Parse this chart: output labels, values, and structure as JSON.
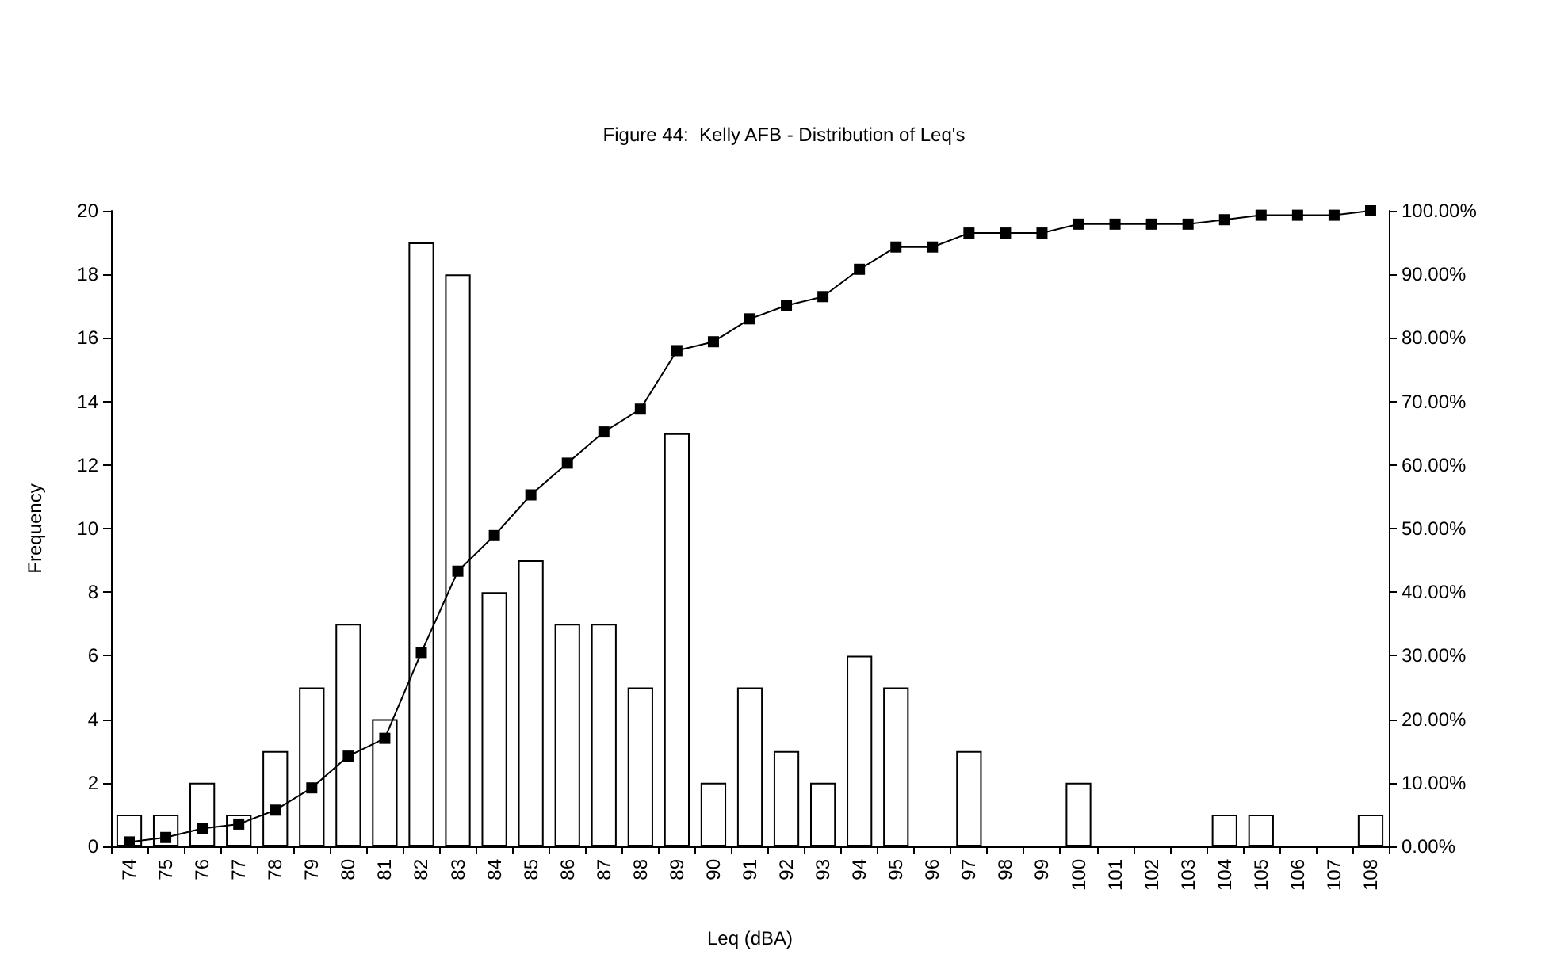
{
  "chart_data": {
    "type": "bar",
    "title": "Figure 44:  Kelly AFB - Distribution of Leq's",
    "xlabel": "Leq (dBA)",
    "ylabel": "Frequency",
    "categories": [
      "74",
      "75",
      "76",
      "77",
      "78",
      "79",
      "80",
      "81",
      "82",
      "83",
      "84",
      "85",
      "86",
      "87",
      "88",
      "89",
      "90",
      "91",
      "92",
      "93",
      "94",
      "95",
      "96",
      "97",
      "98",
      "99",
      "100",
      "101",
      "102",
      "103",
      "104",
      "105",
      "106",
      "107",
      "108"
    ],
    "series": [
      {
        "color": "#ffffff",
        "values": [
          1,
          1,
          2,
          1,
          3,
          5,
          7,
          4,
          19,
          18,
          8,
          9,
          7,
          7,
          5,
          13,
          2,
          5,
          3,
          2,
          6,
          5,
          0,
          3,
          0,
          0,
          2,
          0,
          0,
          0,
          1,
          1,
          0,
          0,
          1
        ]
      },
      {
        "type": "line",
        "axis": "y2",
        "color": "#000000",
        "marker": "square",
        "line_style": "solid",
        "values": [
          0.7,
          1.4,
          2.8,
          3.5,
          5.7,
          9.2,
          14.2,
          17.0,
          30.5,
          43.3,
          48.9,
          55.3,
          60.3,
          65.2,
          68.8,
          78.0,
          79.4,
          83.0,
          85.1,
          86.5,
          90.8,
          94.3,
          94.3,
          96.5,
          96.5,
          96.5,
          97.9,
          97.9,
          97.9,
          97.9,
          98.6,
          99.3,
          99.3,
          99.3,
          100
        ]
      }
    ],
    "ylim": [
      0,
      20
    ],
    "yticks": [
      0,
      2,
      4,
      6,
      8,
      10,
      12,
      14,
      16,
      18,
      20
    ],
    "y2lim": [
      0,
      100
    ],
    "y2ticks": [
      {
        "value": 0,
        "label": "0.00%"
      },
      {
        "value": 10,
        "label": "10.00%"
      },
      {
        "value": 20,
        "label": "20.00%"
      },
      {
        "value": 30,
        "label": "30.00%"
      },
      {
        "value": 40,
        "label": "40.00%"
      },
      {
        "value": 50,
        "label": "50.00%"
      },
      {
        "value": 60,
        "label": "60.00%"
      },
      {
        "value": 70,
        "label": "70.00%"
      },
      {
        "value": 80,
        "label": "80.00%"
      },
      {
        "value": 90,
        "label": "90.00%"
      },
      {
        "value": 100,
        "label": "100.00%"
      }
    ],
    "grid": false
  }
}
